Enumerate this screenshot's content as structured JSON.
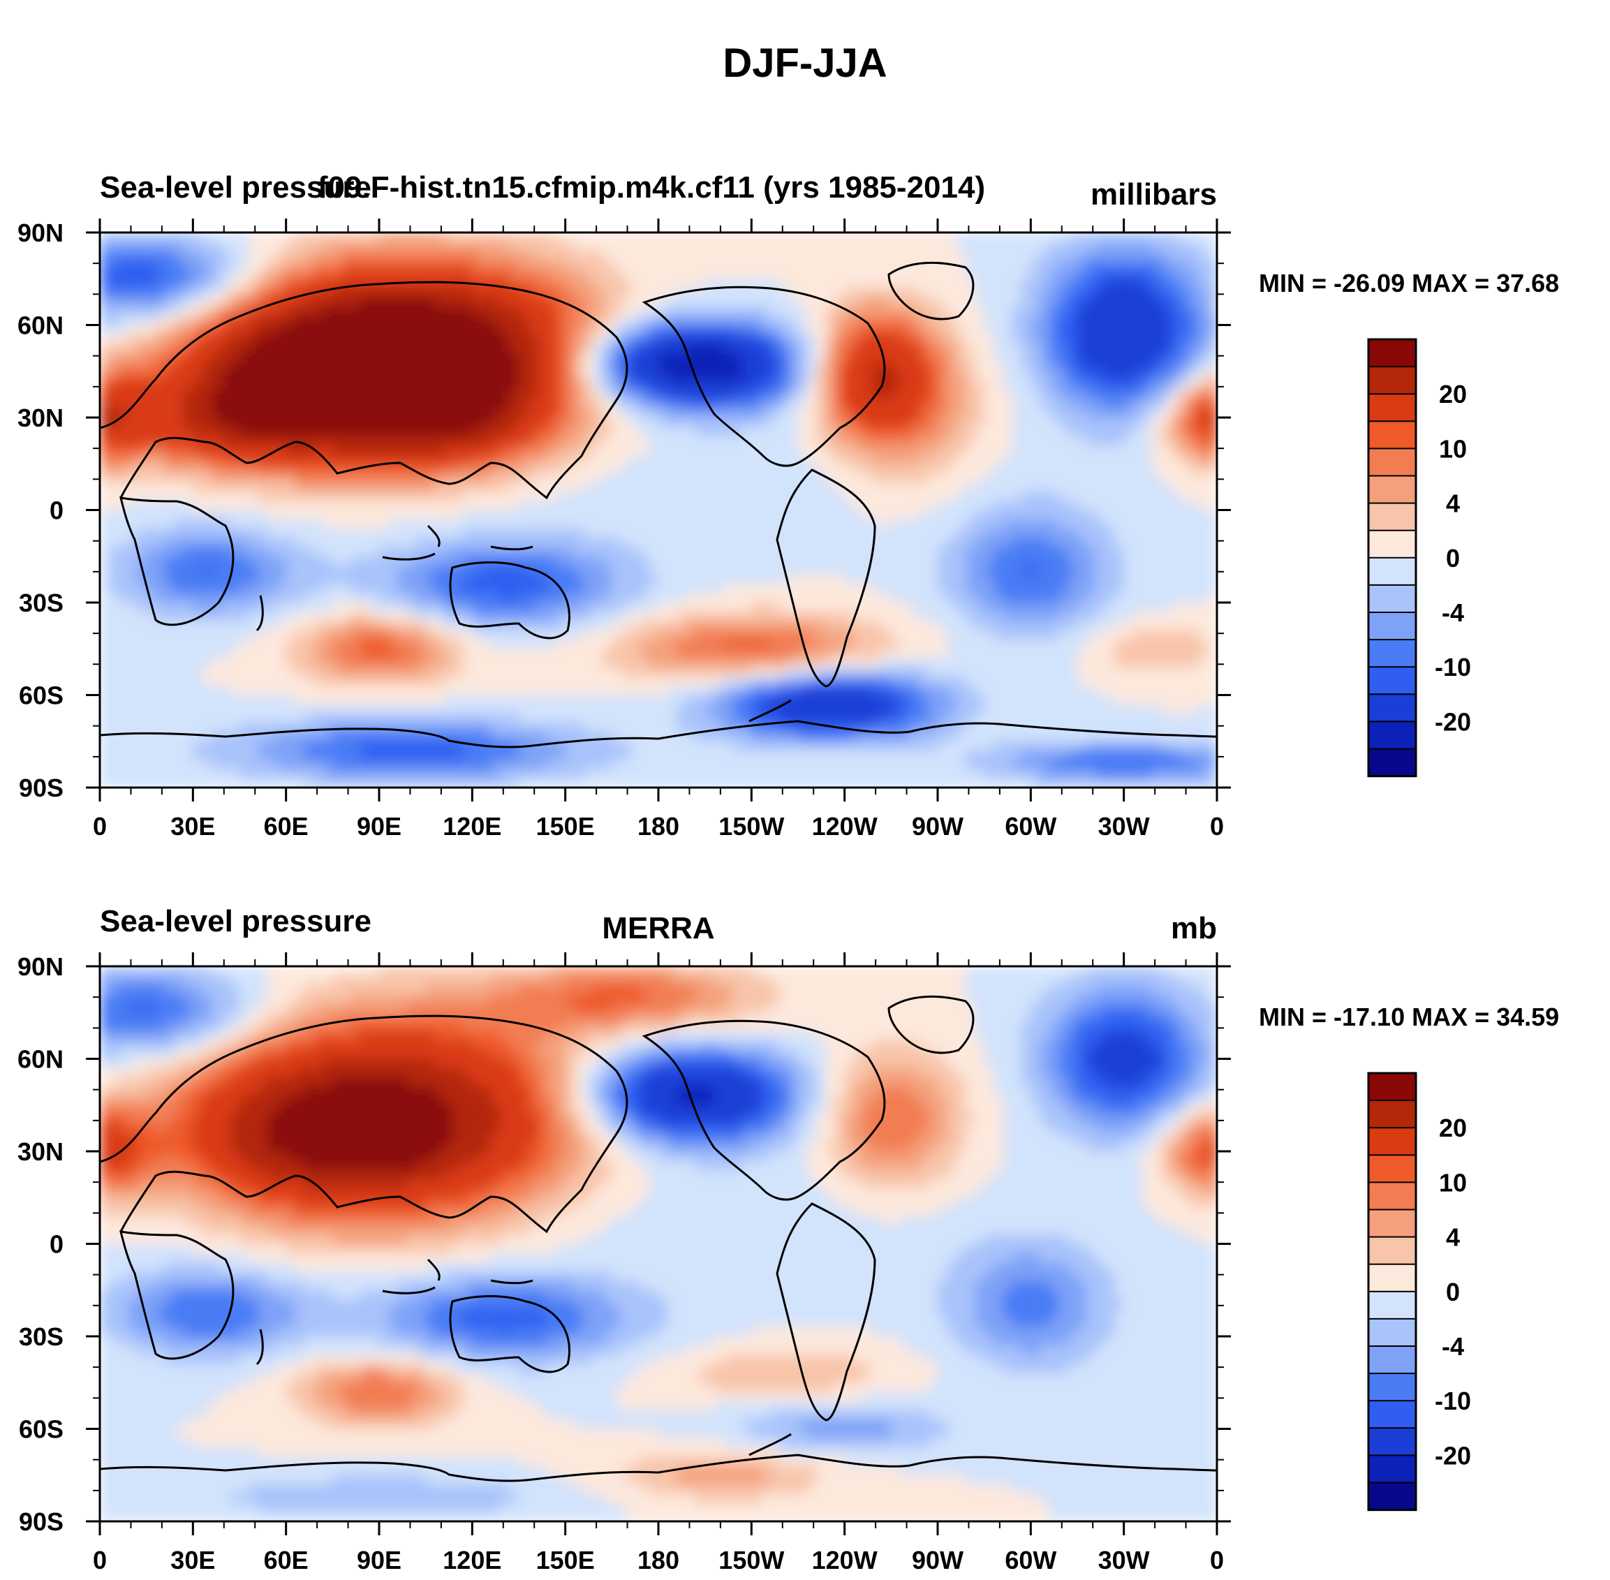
{
  "figure_title": "DJF-JJA",
  "chart_data": [
    {
      "type": "heatmap",
      "left_title": "Sea-level pressure",
      "center_title": "f09.F-hist.tn15.cfmip.m4k.cf11 (yrs 1985-2014)",
      "units": "millibars",
      "stats": "MIN = -26.09 MAX =  37.68",
      "min": -26.09,
      "max": 37.68,
      "xlabel": "",
      "ylabel": "",
      "x_ticks": [
        "0",
        "30E",
        "60E",
        "90E",
        "120E",
        "150E",
        "180",
        "150W",
        "120W",
        "90W",
        "60W",
        "30W",
        "0"
      ],
      "y_ticks": [
        "90N",
        "60N",
        "30N",
        "0",
        "30S",
        "60S",
        "90S"
      ],
      "xlim": [
        0,
        360
      ],
      "ylim": [
        -90,
        90
      ],
      "colorbar_levels": [
        -25,
        -20,
        -15,
        -10,
        -8,
        -6,
        -4,
        -2,
        0,
        2,
        4,
        6,
        8,
        10,
        15,
        20,
        25
      ],
      "colorbar_labels": [
        "20",
        "10",
        "4",
        "0",
        "-4",
        "-10",
        "-20"
      ],
      "features": [
        {
          "lon": 100,
          "lat": 48,
          "sx": 38,
          "sy": 20,
          "amp": 32
        },
        {
          "lon": 60,
          "lat": 40,
          "sx": 26,
          "sy": 16,
          "amp": 12
        },
        {
          "lon": 40,
          "lat": 28,
          "sx": 20,
          "sy": 10,
          "amp": 8
        },
        {
          "lon": 112,
          "lat": 28,
          "sx": 18,
          "sy": 10,
          "amp": 6
        },
        {
          "lon": 0,
          "lat": 30,
          "sx": 12,
          "sy": 10,
          "amp": 13
        },
        {
          "lon": 360,
          "lat": 30,
          "sx": 12,
          "sy": 10,
          "amp": 13
        },
        {
          "lon": 250,
          "lat": 45,
          "sx": 14,
          "sy": 14,
          "amp": 14
        },
        {
          "lon": 260,
          "lat": 30,
          "sx": 18,
          "sy": 18,
          "amp": 5
        },
        {
          "lon": 190,
          "lat": 47,
          "sx": 26,
          "sy": 10,
          "amp": -20
        },
        {
          "lon": 330,
          "lat": 58,
          "sx": 18,
          "sy": 18,
          "amp": -15
        },
        {
          "lon": 15,
          "lat": 75,
          "sx": 25,
          "sy": 10,
          "amp": -10
        },
        {
          "lon": 35,
          "lat": -20,
          "sx": 20,
          "sy": 10,
          "amp": -8
        },
        {
          "lon": 130,
          "lat": -24,
          "sx": 28,
          "sy": 10,
          "amp": -9
        },
        {
          "lon": 300,
          "lat": -20,
          "sx": 18,
          "sy": 14,
          "amp": -8
        },
        {
          "lon": 90,
          "lat": -45,
          "sx": 18,
          "sy": 8,
          "amp": 9
        },
        {
          "lon": 210,
          "lat": -45,
          "sx": 30,
          "sy": 8,
          "amp": 9
        },
        {
          "lon": 340,
          "lat": -45,
          "sx": 15,
          "sy": 6,
          "amp": 4
        },
        {
          "lon": 235,
          "lat": -63,
          "sx": 25,
          "sy": 8,
          "amp": -15
        },
        {
          "lon": 100,
          "lat": -78,
          "sx": 40,
          "sy": 7,
          "amp": -9
        },
        {
          "lon": 330,
          "lat": -82,
          "sx": 30,
          "sy": 5,
          "amp": -8
        },
        {
          "lon": 180,
          "lat": 10,
          "sx": 80,
          "sy": 15,
          "amp": -1.5
        }
      ]
    },
    {
      "type": "heatmap",
      "left_title": "Sea-level pressure",
      "center_title": "MERRA",
      "units": "mb",
      "stats": "MIN = -17.10 MAX =  34.59",
      "min": -17.1,
      "max": 34.59,
      "xlabel": "",
      "ylabel": "",
      "x_ticks": [
        "0",
        "30E",
        "60E",
        "90E",
        "120E",
        "150E",
        "180",
        "150W",
        "120W",
        "90W",
        "60W",
        "30W",
        "0"
      ],
      "y_ticks": [
        "90N",
        "60N",
        "30N",
        "0",
        "30S",
        "60S",
        "90S"
      ],
      "xlim": [
        0,
        360
      ],
      "ylim": [
        -90,
        90
      ],
      "colorbar_levels": [
        -25,
        -20,
        -15,
        -10,
        -8,
        -6,
        -4,
        -2,
        0,
        2,
        4,
        6,
        8,
        10,
        15,
        20,
        25
      ],
      "colorbar_labels": [
        "20",
        "10",
        "4",
        "0",
        "-4",
        "-10",
        "-20"
      ],
      "features": [
        {
          "lon": 95,
          "lat": 40,
          "sx": 40,
          "sy": 22,
          "amp": 22
        },
        {
          "lon": 90,
          "lat": 33,
          "sx": 10,
          "sy": 6,
          "amp": 8
        },
        {
          "lon": 60,
          "lat": 35,
          "sx": 25,
          "sy": 15,
          "amp": 8
        },
        {
          "lon": 170,
          "lat": 80,
          "sx": 30,
          "sy": 8,
          "amp": 8
        },
        {
          "lon": 0,
          "lat": 30,
          "sx": 12,
          "sy": 10,
          "amp": 11
        },
        {
          "lon": 360,
          "lat": 30,
          "sx": 12,
          "sy": 10,
          "amp": 11
        },
        {
          "lon": 255,
          "lat": 40,
          "sx": 16,
          "sy": 16,
          "amp": 8
        },
        {
          "lon": 190,
          "lat": 48,
          "sx": 24,
          "sy": 11,
          "amp": -17
        },
        {
          "lon": 330,
          "lat": 60,
          "sx": 18,
          "sy": 16,
          "amp": -12
        },
        {
          "lon": 15,
          "lat": 75,
          "sx": 25,
          "sy": 10,
          "amp": -9
        },
        {
          "lon": 35,
          "lat": -22,
          "sx": 22,
          "sy": 10,
          "amp": -8
        },
        {
          "lon": 130,
          "lat": -24,
          "sx": 30,
          "sy": 10,
          "amp": -9
        },
        {
          "lon": 300,
          "lat": -20,
          "sx": 18,
          "sy": 14,
          "amp": -7
        },
        {
          "lon": 90,
          "lat": -48,
          "sx": 18,
          "sy": 8,
          "amp": 8
        },
        {
          "lon": 220,
          "lat": -42,
          "sx": 25,
          "sy": 6,
          "amp": 4
        },
        {
          "lon": 240,
          "lat": -60,
          "sx": 25,
          "sy": 6,
          "amp": -5
        },
        {
          "lon": 200,
          "lat": -75,
          "sx": 25,
          "sy": 6,
          "amp": 5
        },
        {
          "lon": 90,
          "lat": -82,
          "sx": 40,
          "sy": 5,
          "amp": -4
        },
        {
          "lon": 180,
          "lat": 10,
          "sx": 80,
          "sy": 15,
          "amp": -1.5
        }
      ]
    }
  ]
}
